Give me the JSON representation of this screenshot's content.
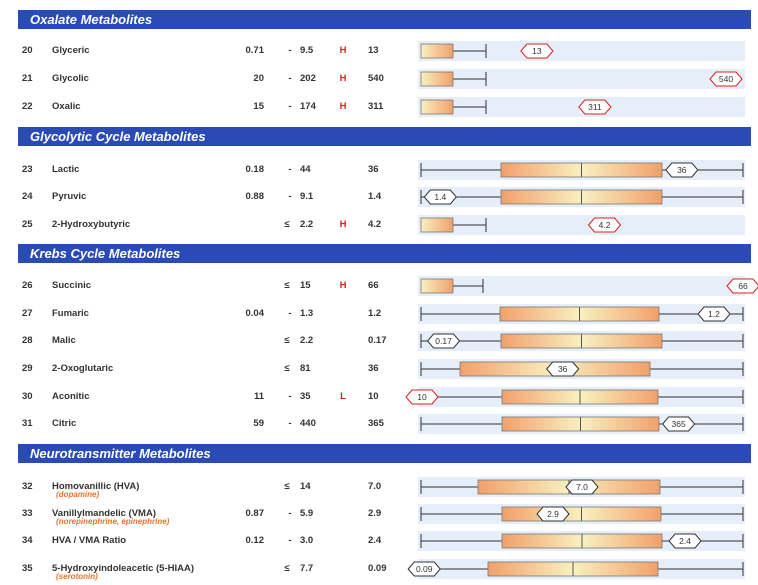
{
  "sections": [
    {
      "title": "Oxalate Metabolites",
      "rows": [
        {
          "num": "20",
          "name": "Glyceric",
          "sub": "",
          "low": "0.71",
          "sep": "-",
          "high": "9.5",
          "flag": "H",
          "result": "13",
          "marker": "13",
          "ranged": false,
          "marker_pos": 0.36,
          "high_marker": true
        },
        {
          "num": "21",
          "name": "Glycolic",
          "sub": "",
          "low": "20",
          "sep": "-",
          "high": "202",
          "flag": "H",
          "result": "540",
          "marker": "540",
          "ranged": false,
          "marker_pos": 0.94,
          "high_marker": true
        },
        {
          "num": "22",
          "name": "Oxalic",
          "sub": "",
          "low": "15",
          "sep": "-",
          "high": "174",
          "flag": "H",
          "result": "311",
          "marker": "311",
          "ranged": false,
          "marker_pos": 0.54,
          "high_marker": true
        }
      ]
    },
    {
      "title": "Glycolytic Cycle Metabolites",
      "rows": [
        {
          "num": "23",
          "name": "Lactic",
          "sub": "",
          "low": "0.18",
          "sep": "-",
          "high": "44",
          "flag": "",
          "result": "36",
          "marker": "36",
          "ranged": true,
          "marker_pos": 0.81,
          "high_marker": false
        },
        {
          "num": "24",
          "name": "Pyruvic",
          "sub": "",
          "low": "0.88",
          "sep": "-",
          "high": "9.1",
          "flag": "",
          "result": "1.4",
          "marker": "1.4",
          "ranged": true,
          "marker_pos": 0.06,
          "high_marker": false
        },
        {
          "num": "25",
          "name": "2-Hydroxybutyric",
          "sub": "",
          "low": "",
          "sep": "≤",
          "high": "2.2",
          "flag": "H",
          "result": "4.2",
          "marker": "4.2",
          "ranged": false,
          "marker_pos": 0.57,
          "high_marker": true
        }
      ]
    },
    {
      "title": "Krebs Cycle Metabolites",
      "rows": [
        {
          "num": "26",
          "name": "Succinic",
          "sub": "",
          "low": "",
          "sep": "≤",
          "high": "15",
          "flag": "H",
          "result": "66",
          "marker": "66",
          "ranged": false,
          "marker_pos": 0.995,
          "high_marker": true
        },
        {
          "num": "27",
          "name": "Fumaric",
          "sub": "",
          "low": "0.04",
          "sep": "-",
          "high": "1.3",
          "flag": "",
          "result": "1.2",
          "marker": "1.2",
          "ranged": true,
          "marker_pos": 0.91,
          "high_marker": false
        },
        {
          "num": "28",
          "name": "Malic",
          "sub": "",
          "low": "",
          "sep": "≤",
          "high": "2.2",
          "flag": "",
          "result": "0.17",
          "marker": "0.17",
          "ranged": true,
          "marker_pos": 0.07,
          "high_marker": false
        },
        {
          "num": "29",
          "name": "2-Oxoglutaric",
          "sub": "",
          "low": "",
          "sep": "≤",
          "high": "81",
          "flag": "",
          "result": "36",
          "marker": "36",
          "ranged": true,
          "marker_pos": 0.44,
          "high_marker": false
        },
        {
          "num": "30",
          "name": "Aconitic",
          "sub": "",
          "low": "11",
          "sep": "-",
          "high": "35",
          "flag": "L",
          "result": "10",
          "marker": "10",
          "ranged": true,
          "marker_pos": 0.0,
          "high_marker": true
        },
        {
          "num": "31",
          "name": "Citric",
          "sub": "",
          "low": "59",
          "sep": "-",
          "high": "440",
          "flag": "",
          "result": "365",
          "marker": "365",
          "ranged": true,
          "marker_pos": 0.8,
          "high_marker": false
        }
      ]
    },
    {
      "title": "Neurotransmitter Metabolites",
      "rows": [
        {
          "num": "32",
          "name": "Homovanillic (HVA)",
          "sub": "(dopamine)",
          "low": "",
          "sep": "≤",
          "high": "14",
          "flag": "",
          "result": "7.0",
          "marker": "7.0",
          "ranged": true,
          "marker_pos": 0.5,
          "high_marker": false
        },
        {
          "num": "33",
          "name": "Vanillylmandelic (VMA)",
          "sub": "(norepinephrine, epinephrine)",
          "low": "0.87",
          "sep": "-",
          "high": "5.9",
          "flag": "",
          "result": "2.9",
          "marker": "2.9",
          "ranged": true,
          "marker_pos": 0.41,
          "high_marker": false
        },
        {
          "num": "34",
          "name": "HVA / VMA Ratio",
          "sub": "",
          "low": "0.12",
          "sep": "-",
          "high": "3.0",
          "flag": "",
          "result": "2.4",
          "marker": "2.4",
          "ranged": true,
          "marker_pos": 0.82,
          "high_marker": false
        },
        {
          "num": "35",
          "name": "5-Hydroxyindoleacetic (5-HIAA)",
          "sub": "(serotonin)",
          "low": "",
          "sep": "≤",
          "high": "7.7",
          "flag": "",
          "result": "0.09",
          "marker": "0.09",
          "ranged": true,
          "marker_pos": 0.01,
          "high_marker": false
        }
      ]
    }
  ],
  "colors": {
    "header_bg": "#2a4bb5",
    "row_bg": "#e6eef9",
    "flag": "#d62020",
    "sub_text": "#e8732a",
    "marker_high": "#d62020",
    "marker_normal": "#333333"
  }
}
